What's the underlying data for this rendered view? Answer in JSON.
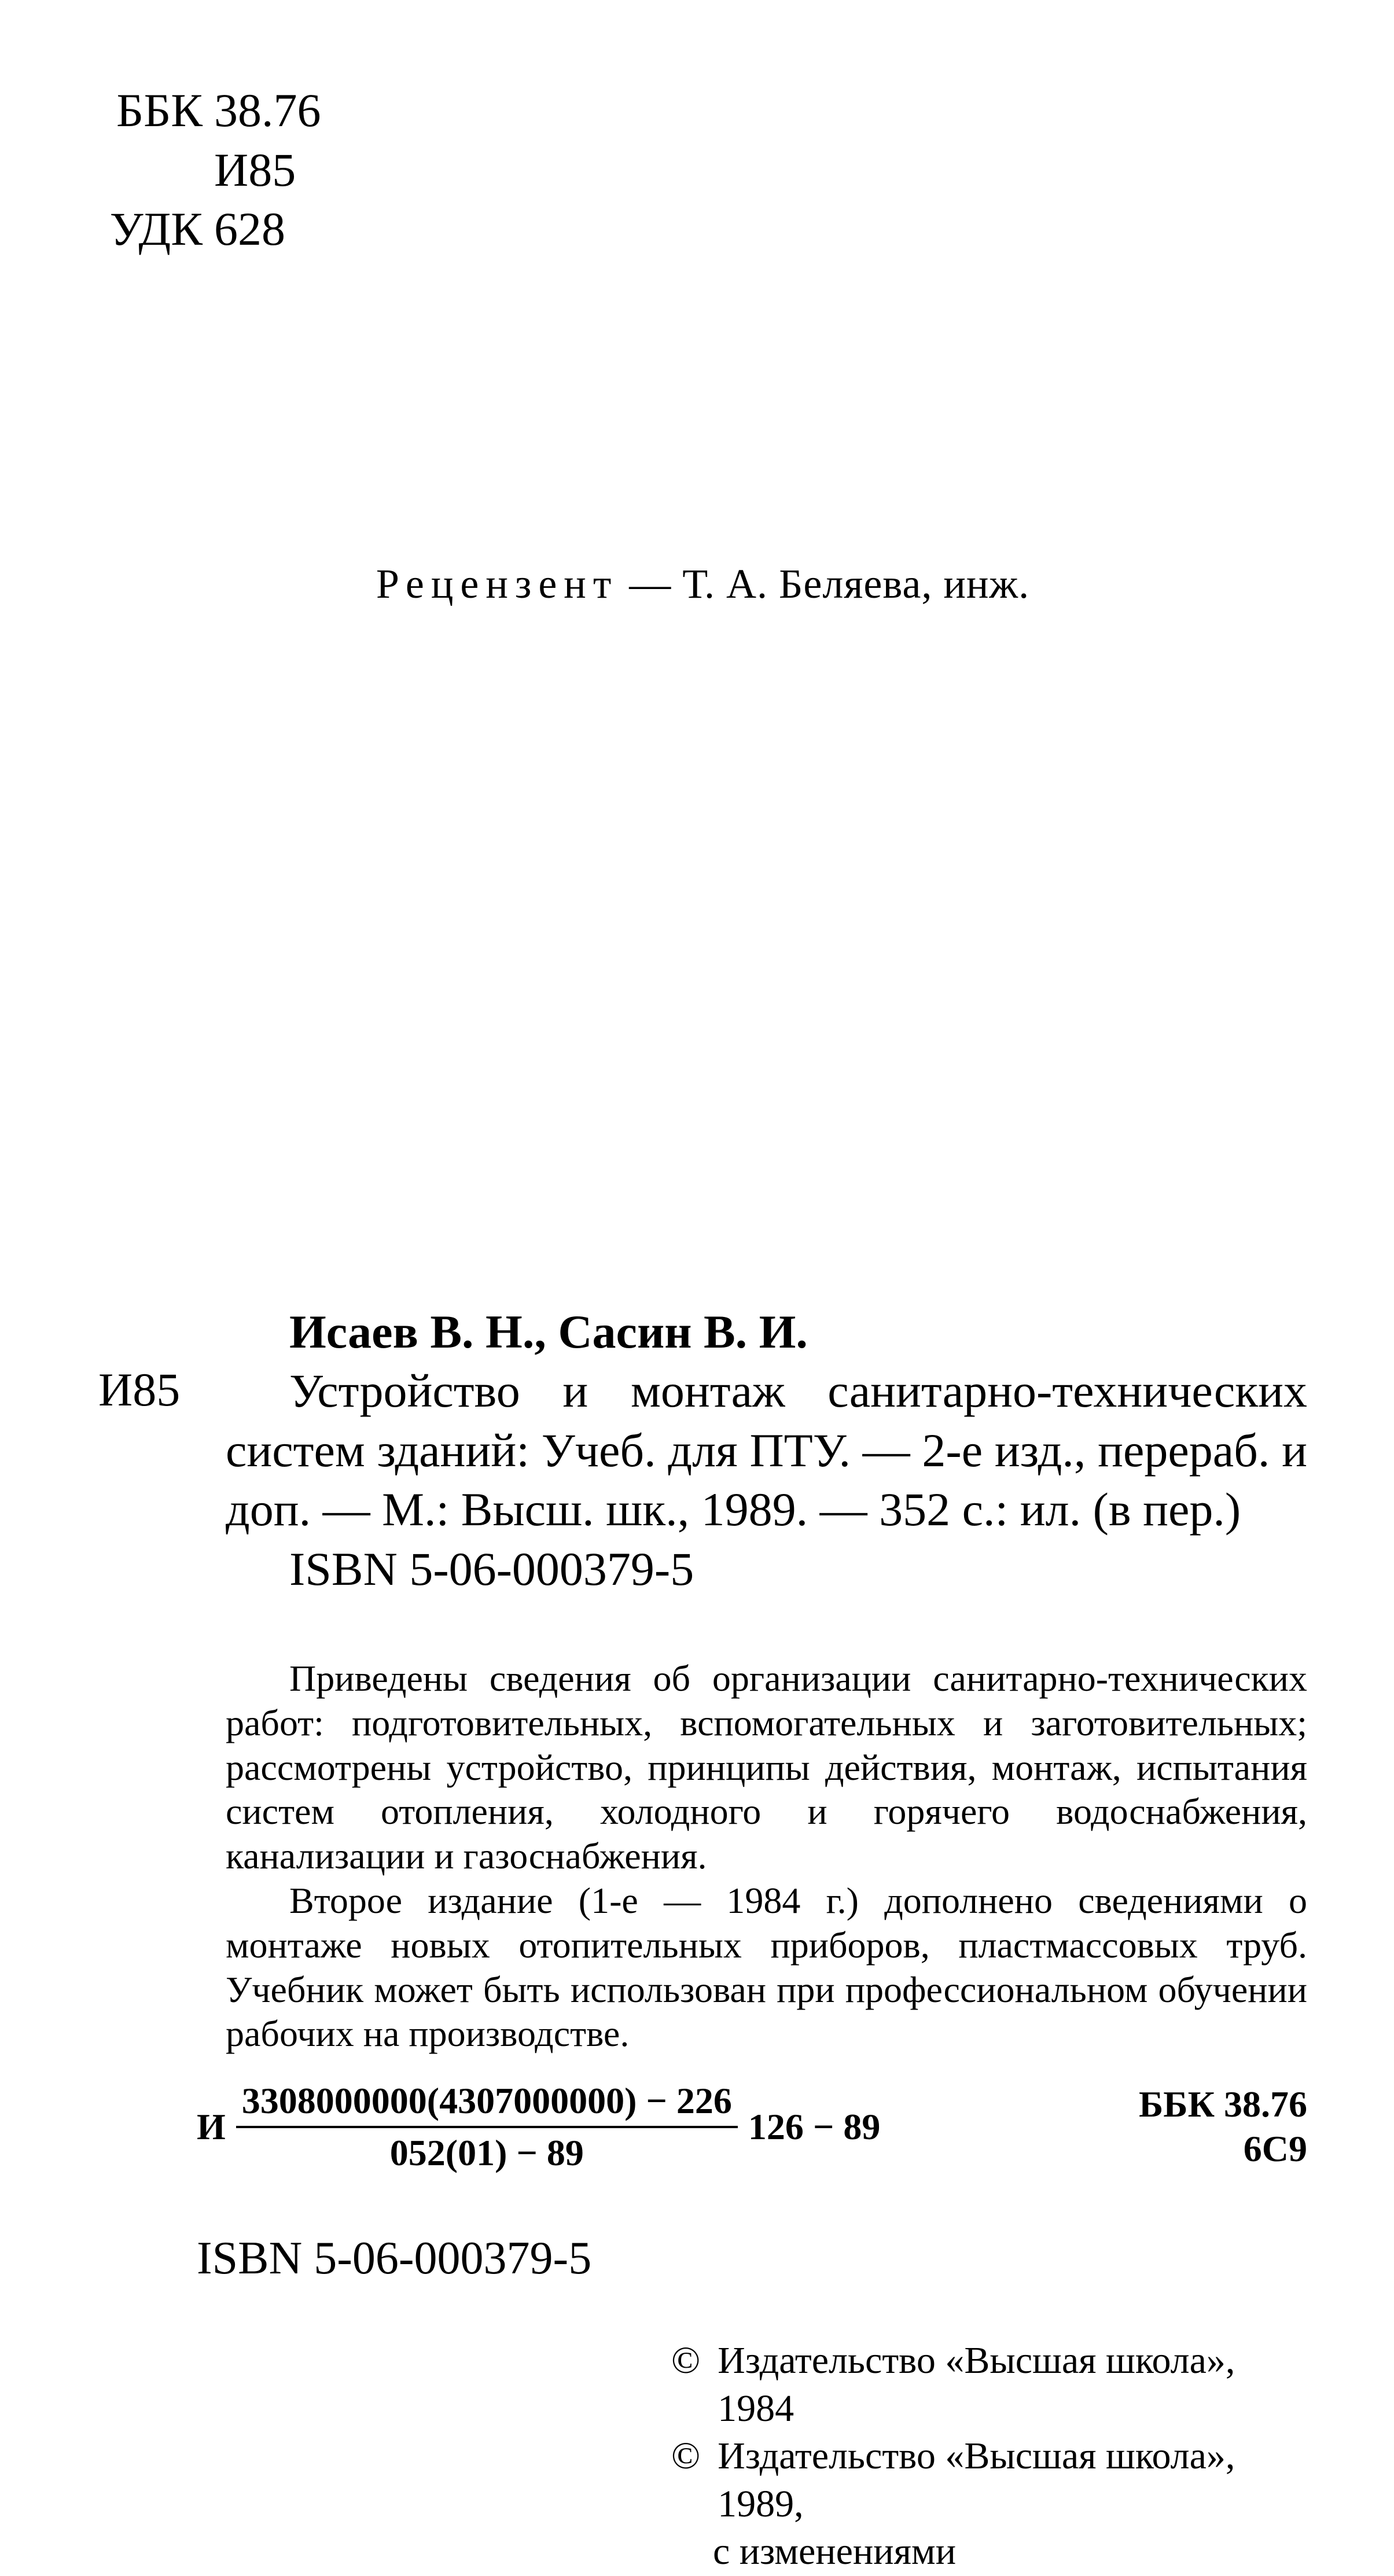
{
  "classification": {
    "rows": [
      {
        "label": "ББК",
        "value": "38.76"
      },
      {
        "label": "",
        "value": "И85"
      },
      {
        "label": "УДК",
        "value": "628"
      }
    ]
  },
  "reviewer": {
    "label": "Рецензент",
    "dash": "—",
    "name": "Т. А. Беляева, инж."
  },
  "biblio": {
    "code": "И85",
    "authors": "Исаев В. Н., Сасин В. И.",
    "title_line1": "Устройство и монтаж санитарно-технических систем зданий: Учеб. для ПТУ. — 2-е изд., перераб. и доп. — М.: Высш. шк., 1989. — 352 с.: ил. (в пер.)",
    "isbn": "ISBN 5-06-000379-5"
  },
  "annotation": {
    "p1": "Приведены сведения об организации санитарно-технических работ: подготовительных, вспомогательных и заготовительных; рассмотрены устройство, принципы действия, монтаж, испытания систем отопления, холодного и горячего водоснабжения, канализации и газоснабжения.",
    "p2": "Второе издание (1-е — 1984 г.) дополнено сведениями о монтаже новых отопительных приборов, пластмассовых труб. Учебник может быть использован при профессиональном обучении рабочих на производстве."
  },
  "formula": {
    "letter": "И",
    "numerator": "3308000000(4307000000) − 226",
    "denominator": "052(01) − 89",
    "tail": "126 − 89",
    "right1": "ББК 38.76",
    "right2": "6С9"
  },
  "isbn_bottom": "ISBN 5-06-000379-5",
  "copyright": {
    "line1": "Издательство «Высшая школа», 1984",
    "line2": "Издательство «Высшая школа», 1989,",
    "line3": "с изменениями",
    "symbol": "©"
  }
}
